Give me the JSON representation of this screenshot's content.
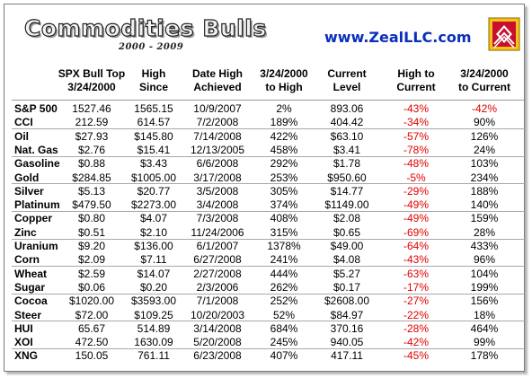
{
  "header": {
    "title": "Commodities Bulls",
    "subtitle": "2000 - 2009",
    "site": "www.ZealLLC.com"
  },
  "table": {
    "columns": [
      [
        "SPX Bull Top",
        "3/24/2000"
      ],
      [
        "High",
        "Since"
      ],
      [
        "Date High",
        "Achieved"
      ],
      [
        "3/24/2000",
        "to High"
      ],
      [
        "Current",
        "Level"
      ],
      [
        "High to",
        "Current"
      ],
      [
        "3/24/2000",
        "to Current"
      ]
    ],
    "rows": [
      {
        "name": "S&P 500",
        "spx": "1527.46",
        "high": "1565.15",
        "date": "10/9/2007",
        "to_high": "2%",
        "current": "893.06",
        "high_to_current": "-43%",
        "to_current": "-42%"
      },
      {
        "name": "CCI",
        "spx": "212.59",
        "high": "614.57",
        "date": "7/2/2008",
        "to_high": "189%",
        "current": "404.42",
        "high_to_current": "-34%",
        "to_current": "90%"
      },
      {
        "name": "Oil",
        "spx": "$27.93",
        "high": "$145.80",
        "date": "7/14/2008",
        "to_high": "422%",
        "current": "$63.10",
        "high_to_current": "-57%",
        "to_current": "126%"
      },
      {
        "name": "Nat. Gas",
        "spx": "$2.76",
        "high": "$15.41",
        "date": "12/13/2005",
        "to_high": "458%",
        "current": "$3.41",
        "high_to_current": "-78%",
        "to_current": "24%"
      },
      {
        "name": "Gasoline",
        "spx": "$0.88",
        "high": "$3.43",
        "date": "6/6/2008",
        "to_high": "292%",
        "current": "$1.78",
        "high_to_current": "-48%",
        "to_current": "103%"
      },
      {
        "name": "Gold",
        "spx": "$284.85",
        "high": "$1005.00",
        "date": "3/17/2008",
        "to_high": "253%",
        "current": "$950.60",
        "high_to_current": "-5%",
        "to_current": "234%"
      },
      {
        "name": "Silver",
        "spx": "$5.13",
        "high": "$20.77",
        "date": "3/5/2008",
        "to_high": "305%",
        "current": "$14.77",
        "high_to_current": "-29%",
        "to_current": "188%"
      },
      {
        "name": "Platinum",
        "spx": "$479.50",
        "high": "$2273.00",
        "date": "3/4/2008",
        "to_high": "374%",
        "current": "$1149.00",
        "high_to_current": "-49%",
        "to_current": "140%"
      },
      {
        "name": "Copper",
        "spx": "$0.80",
        "high": "$4.07",
        "date": "7/3/2008",
        "to_high": "408%",
        "current": "$2.08",
        "high_to_current": "-49%",
        "to_current": "159%"
      },
      {
        "name": "Zinc",
        "spx": "$0.51",
        "high": "$2.10",
        "date": "11/24/2006",
        "to_high": "315%",
        "current": "$0.65",
        "high_to_current": "-69%",
        "to_current": "28%"
      },
      {
        "name": "Uranium",
        "spx": "$9.20",
        "high": "$136.00",
        "date": "6/1/2007",
        "to_high": "1378%",
        "current": "$49.00",
        "high_to_current": "-64%",
        "to_current": "433%"
      },
      {
        "name": "Corn",
        "spx": "$2.09",
        "high": "$7.11",
        "date": "6/27/2008",
        "to_high": "241%",
        "current": "$4.08",
        "high_to_current": "-43%",
        "to_current": "96%"
      },
      {
        "name": "Wheat",
        "spx": "$2.59",
        "high": "$14.07",
        "date": "2/27/2008",
        "to_high": "444%",
        "current": "$5.27",
        "high_to_current": "-63%",
        "to_current": "104%"
      },
      {
        "name": "Sugar",
        "spx": "$0.06",
        "high": "$0.20",
        "date": "2/3/2006",
        "to_high": "262%",
        "current": "$0.17",
        "high_to_current": "-17%",
        "to_current": "199%"
      },
      {
        "name": "Cocoa",
        "spx": "$1020.00",
        "high": "$3593.00",
        "date": "7/1/2008",
        "to_high": "252%",
        "current": "$2608.00",
        "high_to_current": "-27%",
        "to_current": "156%"
      },
      {
        "name": "Steer",
        "spx": "$72.00",
        "high": "$109.25",
        "date": "10/20/2003",
        "to_high": "52%",
        "current": "$84.97",
        "high_to_current": "-22%",
        "to_current": "18%"
      },
      {
        "name": "HUI",
        "spx": "65.67",
        "high": "514.89",
        "date": "3/14/2008",
        "to_high": "684%",
        "current": "370.16",
        "high_to_current": "-28%",
        "to_current": "464%"
      },
      {
        "name": "XOI",
        "spx": "472.50",
        "high": "1630.09",
        "date": "5/20/2008",
        "to_high": "245%",
        "current": "940.05",
        "high_to_current": "-42%",
        "to_current": "99%"
      },
      {
        "name": "XNG",
        "spx": "150.05",
        "high": "761.11",
        "date": "6/23/2008",
        "to_high": "407%",
        "current": "417.11",
        "high_to_current": "-45%",
        "to_current": "178%"
      }
    ]
  },
  "colors": {
    "negative": "#e00000",
    "site_link": "#0a2fb8",
    "logo_red": "#c8102e"
  },
  "icons": {
    "logo": "zeal-logo-icon"
  }
}
